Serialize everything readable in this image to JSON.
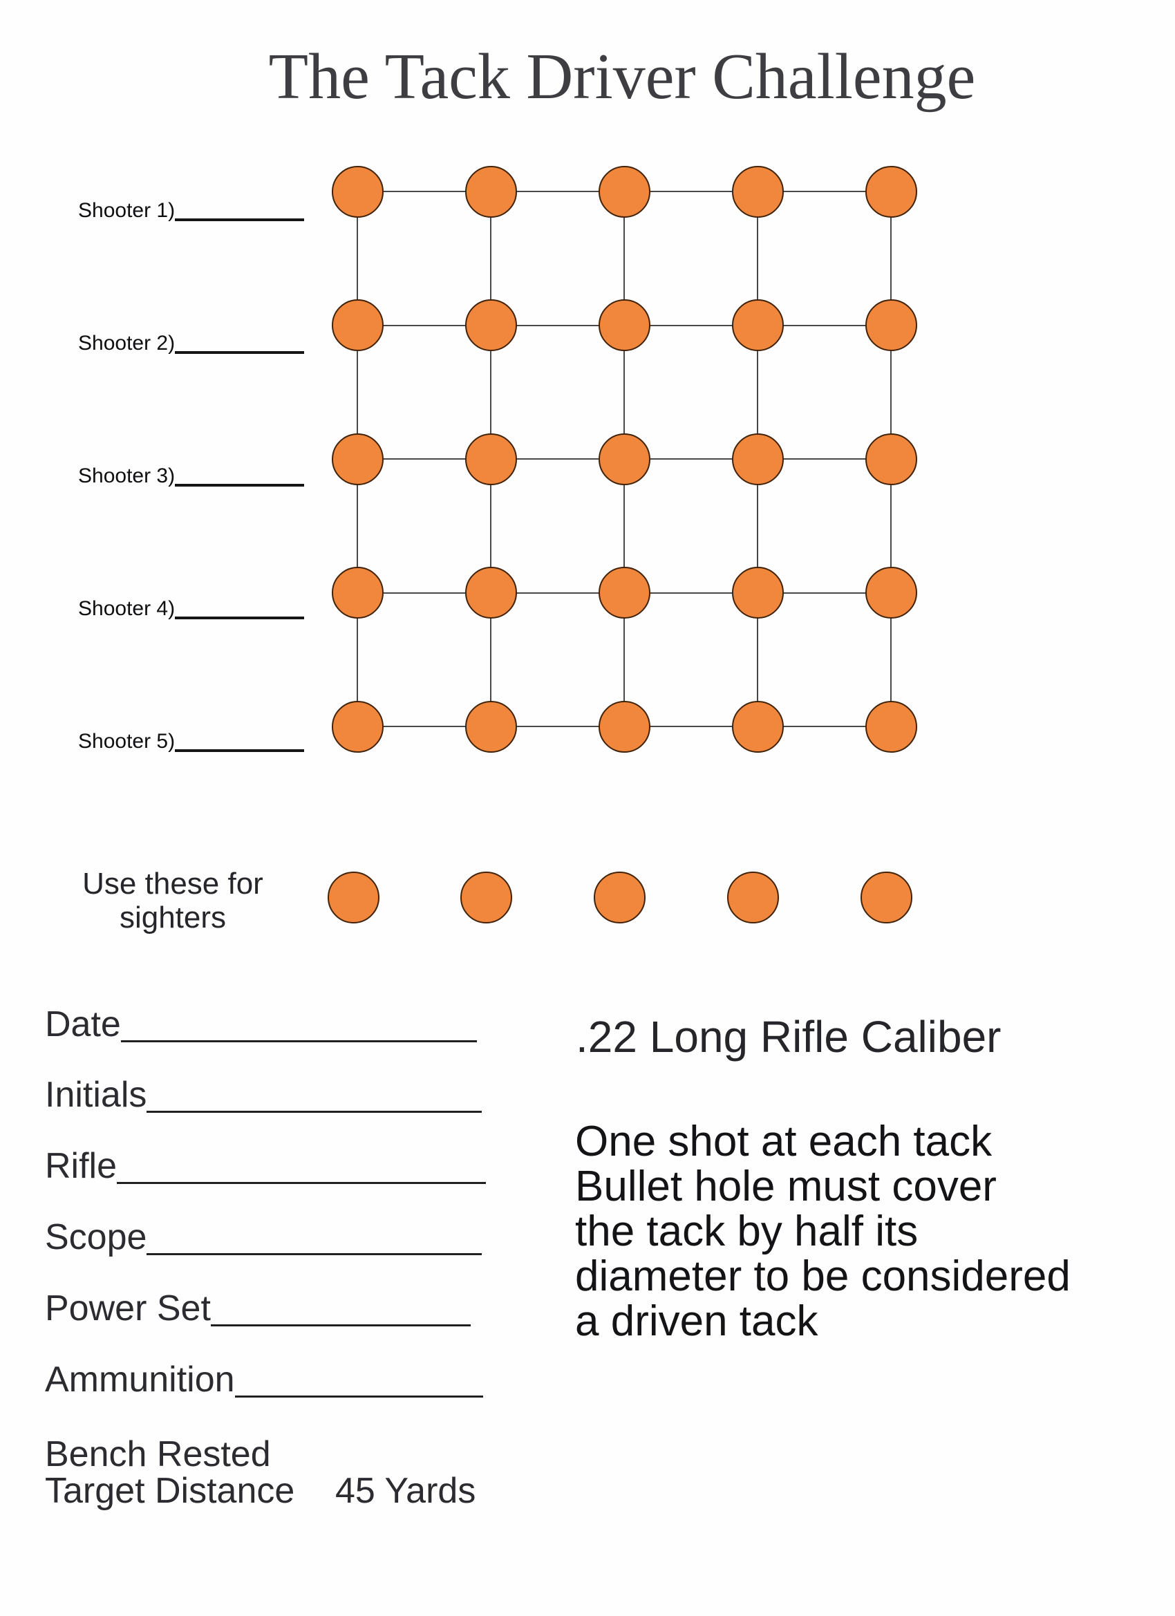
{
  "title": {
    "text": "The Tack Driver Challenge",
    "color": "#3e3e42"
  },
  "shooters": [
    {
      "label": "Shooter 1)"
    },
    {
      "label": "Shooter 2)"
    },
    {
      "label": "Shooter 3)"
    },
    {
      "label": "Shooter 4)"
    },
    {
      "label": "Shooter 5)"
    }
  ],
  "target_grid": {
    "rows": 5,
    "cols": 5,
    "tack_count": 25,
    "dot_color": "#f1873c",
    "dot_outline_color": "#3f2208",
    "line_color": "#48484a"
  },
  "sighters": {
    "count": 5,
    "note_line1": "Use these for",
    "note_line2": "sighters"
  },
  "form_fields": [
    {
      "label": "Date"
    },
    {
      "label": "Initials"
    },
    {
      "label": "Rifle"
    },
    {
      "label": "Scope"
    },
    {
      "label": "Power Set"
    },
    {
      "label": "Ammunition"
    }
  ],
  "caliber_heading": {
    "text": ".22 Long Rifle Caliber"
  },
  "rules": {
    "lines": [
      "One shot at each tack",
      "Bullet hole must cover",
      "the tack by half its",
      "diameter to be considered",
      "a driven tack"
    ]
  },
  "footer": {
    "bench_rested": "Bench Rested",
    "target_distance_label": "Target Distance",
    "target_distance_value": "45 Yards"
  }
}
